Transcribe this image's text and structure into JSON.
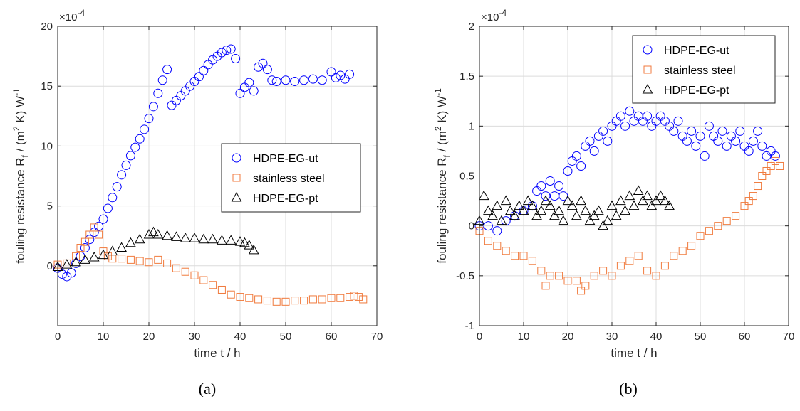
{
  "chart_data": [
    {
      "panel": "a",
      "caption": "(a)",
      "type": "scatter",
      "xlabel": "time t / h",
      "ylabel": "fouling resistance R",
      "ylabel_sub": "f",
      "ylabel_units": " / (m",
      "ylabel_sup2": "2",
      "ylabel_units2": " K) W",
      "ylabel_sup_neg1": "-1",
      "exponent": "×10",
      "exponent_power": "-4",
      "xlim": [
        0,
        70
      ],
      "ylim": [
        -5,
        20
      ],
      "xticks": [
        0,
        10,
        20,
        30,
        40,
        50,
        60,
        70
      ],
      "yticks": [
        0,
        5,
        10,
        15,
        20
      ],
      "grid": true,
      "legend_placement": "right",
      "series": [
        {
          "name": "HDPE-EG-ut",
          "marker": "circle",
          "color": "#0000ff",
          "x": [
            0,
            1,
            2,
            3,
            4,
            5,
            6,
            7,
            8,
            9,
            10,
            11,
            12,
            13,
            14,
            15,
            16,
            17,
            18,
            19,
            20,
            21,
            22,
            23,
            24,
            25,
            26,
            27,
            28,
            29,
            30,
            31,
            32,
            33,
            34,
            35,
            36,
            37,
            38,
            39,
            40,
            41,
            42,
            43,
            44,
            45,
            46,
            47,
            48,
            50,
            52,
            54,
            56,
            58,
            60,
            61,
            62,
            63,
            64
          ],
          "y": [
            -0.2,
            -0.7,
            -0.9,
            -0.6,
            0.2,
            0.8,
            1.5,
            2.2,
            2.8,
            3.3,
            3.9,
            4.8,
            5.7,
            6.6,
            7.6,
            8.4,
            9.2,
            9.9,
            10.6,
            11.4,
            12.3,
            13.3,
            14.4,
            15.5,
            16.4,
            13.4,
            13.8,
            14.2,
            14.6,
            15.0,
            15.4,
            15.8,
            16.3,
            16.8,
            17.2,
            17.5,
            17.8,
            18.0,
            18.1,
            17.3,
            14.4,
            14.9,
            15.3,
            14.6,
            16.6,
            16.9,
            16.4,
            15.5,
            15.4,
            15.5,
            15.4,
            15.5,
            15.6,
            15.5,
            16.2,
            15.7,
            15.9,
            15.6,
            16.0
          ]
        },
        {
          "name": "stainless steel",
          "marker": "square",
          "color": "#f07a3c",
          "x": [
            0,
            2,
            4,
            5,
            6,
            7,
            8,
            9,
            10,
            11,
            12,
            14,
            16,
            18,
            20,
            22,
            24,
            26,
            28,
            30,
            32,
            34,
            36,
            38,
            40,
            42,
            44,
            46,
            48,
            50,
            52,
            54,
            56,
            58,
            60,
            62,
            64,
            65,
            66,
            67
          ],
          "y": [
            0.1,
            0.2,
            0.8,
            1.5,
            2.0,
            2.6,
            3.2,
            2.6,
            1.2,
            0.8,
            0.6,
            0.6,
            0.5,
            0.4,
            0.3,
            0.5,
            0.2,
            -0.2,
            -0.5,
            -0.8,
            -1.2,
            -1.6,
            -2.0,
            -2.4,
            -2.6,
            -2.7,
            -2.8,
            -2.9,
            -3.0,
            -3.0,
            -2.9,
            -2.9,
            -2.8,
            -2.8,
            -2.7,
            -2.7,
            -2.6,
            -2.5,
            -2.6,
            -2.8
          ]
        },
        {
          "name": "HDPE-EG-pt",
          "marker": "triangle",
          "color": "#000000",
          "x": [
            0,
            2,
            4,
            6,
            8,
            10,
            12,
            14,
            16,
            18,
            20,
            21,
            22,
            24,
            26,
            28,
            30,
            32,
            34,
            36,
            38,
            40,
            41,
            42,
            43
          ],
          "y": [
            -0.1,
            0.1,
            0.3,
            0.5,
            0.7,
            0.9,
            1.2,
            1.5,
            1.9,
            2.2,
            2.6,
            2.8,
            2.6,
            2.5,
            2.4,
            2.3,
            2.3,
            2.2,
            2.2,
            2.1,
            2.1,
            2.0,
            1.9,
            1.7,
            1.3
          ]
        }
      ]
    },
    {
      "panel": "b",
      "caption": "(b)",
      "type": "scatter",
      "xlabel": "time t / h",
      "ylabel": "fouling resistance R",
      "ylabel_sub": "f",
      "ylabel_units": " / (m",
      "ylabel_sup2": "2",
      "ylabel_units2": " K) W",
      "ylabel_sup_neg1": "-1",
      "exponent": "×10",
      "exponent_power": "-4",
      "xlim": [
        0,
        70
      ],
      "ylim": [
        -1,
        2
      ],
      "xticks": [
        0,
        10,
        20,
        30,
        40,
        50,
        60,
        70
      ],
      "yticks": [
        -1,
        -0.5,
        0,
        0.5,
        1,
        1.5,
        2
      ],
      "grid": true,
      "legend_placement": "top-right",
      "series": [
        {
          "name": "HDPE-EG-ut",
          "marker": "circle",
          "color": "#0000ff",
          "x": [
            0,
            2,
            4,
            6,
            8,
            10,
            12,
            13,
            14,
            15,
            16,
            17,
            18,
            19,
            20,
            21,
            22,
            23,
            24,
            25,
            26,
            27,
            28,
            29,
            30,
            31,
            32,
            33,
            34,
            35,
            36,
            37,
            38,
            39,
            40,
            41,
            42,
            43,
            44,
            45,
            46,
            47,
            48,
            49,
            50,
            51,
            52,
            53,
            54,
            55,
            56,
            57,
            58,
            59,
            60,
            61,
            62,
            63,
            64,
            65,
            66,
            67
          ],
          "y": [
            0.0,
            0.0,
            -0.05,
            0.05,
            0.1,
            0.15,
            0.2,
            0.35,
            0.4,
            0.3,
            0.45,
            0.3,
            0.4,
            0.3,
            0.55,
            0.65,
            0.7,
            0.6,
            0.8,
            0.85,
            0.75,
            0.9,
            0.95,
            0.85,
            1.0,
            1.05,
            1.1,
            1.0,
            1.15,
            1.05,
            1.1,
            1.05,
            1.1,
            1.0,
            1.05,
            1.1,
            1.05,
            1.0,
            0.95,
            1.05,
            0.9,
            0.85,
            0.95,
            0.8,
            0.9,
            0.7,
            1.0,
            0.9,
            0.85,
            0.95,
            0.8,
            0.9,
            0.85,
            0.95,
            0.8,
            0.75,
            0.85,
            0.95,
            0.8,
            0.7,
            0.75,
            0.7
          ]
        },
        {
          "name": "stainless steel",
          "marker": "square",
          "color": "#f07a3c",
          "x": [
            0,
            2,
            4,
            6,
            8,
            10,
            12,
            14,
            15,
            16,
            18,
            20,
            22,
            23,
            24,
            26,
            28,
            30,
            32,
            34,
            36,
            38,
            40,
            42,
            44,
            46,
            48,
            50,
            52,
            54,
            56,
            58,
            60,
            61,
            62,
            63,
            64,
            65,
            66,
            67,
            68
          ],
          "y": [
            -0.05,
            -0.15,
            -0.2,
            -0.25,
            -0.3,
            -0.3,
            -0.35,
            -0.45,
            -0.6,
            -0.5,
            -0.5,
            -0.55,
            -0.55,
            -0.65,
            -0.6,
            -0.5,
            -0.45,
            -0.5,
            -0.4,
            -0.35,
            -0.3,
            -0.45,
            -0.5,
            -0.4,
            -0.3,
            -0.25,
            -0.2,
            -0.1,
            -0.05,
            0.0,
            0.05,
            0.1,
            0.2,
            0.25,
            0.3,
            0.4,
            0.5,
            0.55,
            0.6,
            0.65,
            0.6
          ]
        },
        {
          "name": "HDPE-EG-pt",
          "marker": "triangle",
          "color": "#000000",
          "x": [
            0,
            1,
            2,
            3,
            4,
            5,
            6,
            7,
            8,
            9,
            10,
            11,
            12,
            13,
            14,
            15,
            16,
            17,
            18,
            19,
            20,
            21,
            22,
            23,
            24,
            25,
            26,
            27,
            28,
            29,
            30,
            31,
            32,
            33,
            34,
            35,
            36,
            37,
            38,
            39,
            40,
            41,
            42,
            43
          ],
          "y": [
            0.05,
            0.3,
            0.15,
            0.1,
            0.2,
            0.05,
            0.25,
            0.15,
            0.1,
            0.2,
            0.15,
            0.25,
            0.2,
            0.1,
            0.15,
            0.25,
            0.2,
            0.1,
            0.15,
            0.05,
            0.25,
            0.2,
            0.1,
            0.25,
            0.15,
            0.05,
            0.1,
            0.15,
            0.0,
            0.05,
            0.2,
            0.1,
            0.25,
            0.15,
            0.3,
            0.2,
            0.35,
            0.25,
            0.3,
            0.2,
            0.25,
            0.3,
            0.25,
            0.2
          ]
        }
      ]
    }
  ]
}
